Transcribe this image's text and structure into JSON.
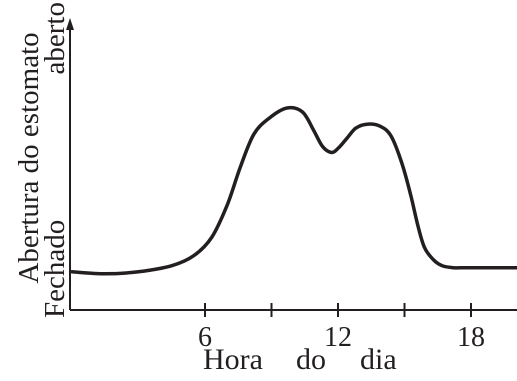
{
  "chart_data": {
    "type": "line",
    "xlabel_parts": [
      "Hora",
      "do",
      "dia"
    ],
    "ylabel": "Abertura do estomato",
    "y_low_label": "Fechado",
    "y_high_label": "aberto",
    "x_ticks": [
      {
        "value": 6,
        "label": "6"
      },
      {
        "value": 9,
        "label": ""
      },
      {
        "value": 12,
        "label": "12"
      },
      {
        "value": 15,
        "label": ""
      },
      {
        "value": 18,
        "label": "18"
      }
    ],
    "xlim": [
      0,
      21
    ],
    "ylim": [
      0,
      1
    ],
    "series": [
      {
        "x": [
          0,
          1.5,
          3,
          4.5,
          5.5,
          6.3,
          7.0,
          7.6,
          8.2,
          8.9,
          9.7,
          10.4,
          10.9,
          11.3,
          11.7,
          12.0,
          12.4,
          12.8,
          13.3,
          13.9,
          14.4,
          14.9,
          15.3,
          15.6,
          15.9,
          16.3,
          16.7,
          17.2,
          17.8,
          19,
          20,
          21
        ],
        "y": [
          0.1,
          0.09,
          0.1,
          0.13,
          0.18,
          0.27,
          0.43,
          0.62,
          0.78,
          0.86,
          0.91,
          0.89,
          0.8,
          0.72,
          0.69,
          0.71,
          0.76,
          0.81,
          0.83,
          0.82,
          0.77,
          0.63,
          0.47,
          0.33,
          0.22,
          0.16,
          0.13,
          0.12,
          0.12,
          0.12,
          0.12,
          0.12
        ]
      }
    ]
  }
}
